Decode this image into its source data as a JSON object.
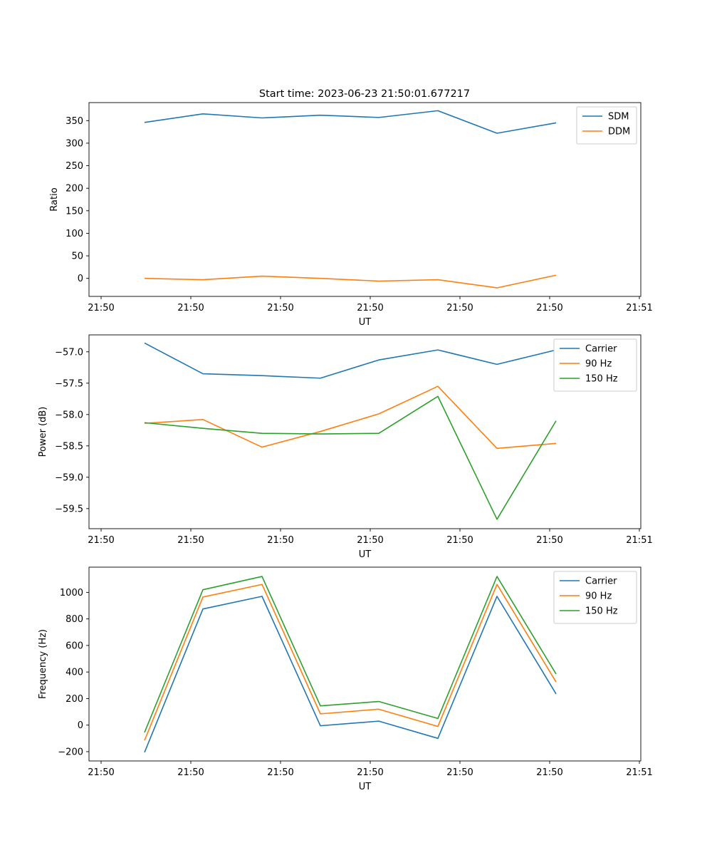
{
  "figure": {
    "title": "Start time: 2023-06-23 21:50:01.677217"
  },
  "chart_data": [
    {
      "type": "line",
      "xlabel": "UT",
      "ylabel": "Ratio",
      "x_tick_labels": [
        "21:50",
        "21:50",
        "21:50",
        "21:50",
        "21:50",
        "21:50",
        "21:51"
      ],
      "y_ticks": [
        0,
        50,
        100,
        150,
        200,
        250,
        300,
        350
      ],
      "ylim": [
        -40,
        390
      ],
      "legend": "top-right",
      "grid": false,
      "series": [
        {
          "name": "SDM",
          "color": "#1f77b4",
          "values": [
            346,
            365,
            356,
            362,
            357,
            372,
            322,
            345
          ]
        },
        {
          "name": "DDM",
          "color": "#ff7f0e",
          "values": [
            0,
            -3,
            5,
            0,
            -6,
            -3,
            -21,
            7
          ]
        }
      ]
    },
    {
      "type": "line",
      "xlabel": "UT",
      "ylabel": "Power (dB)",
      "x_tick_labels": [
        "21:50",
        "21:50",
        "21:50",
        "21:50",
        "21:50",
        "21:50",
        "21:51"
      ],
      "y_ticks": [
        -57.0,
        -57.5,
        -58.0,
        -58.5,
        -59.0,
        -59.5
      ],
      "y_tick_labels": [
        "−57.0",
        "−57.5",
        "−58.0",
        "−58.5",
        "−59.0",
        "−59.5"
      ],
      "ylim": [
        -59.82,
        -56.73
      ],
      "legend": "top-right",
      "grid": false,
      "series": [
        {
          "name": "Carrier",
          "color": "#1f77b4",
          "values": [
            -56.86,
            -57.35,
            -57.38,
            -57.42,
            -57.13,
            -56.97,
            -57.2,
            -56.97
          ]
        },
        {
          "name": "90 Hz",
          "color": "#ff7f0e",
          "values": [
            -58.14,
            -58.08,
            -58.52,
            -58.27,
            -57.99,
            -57.55,
            -58.54,
            -58.46
          ]
        },
        {
          "name": "150 Hz",
          "color": "#2ca02c",
          "values": [
            -58.13,
            -58.22,
            -58.3,
            -58.31,
            -58.3,
            -57.71,
            -59.67,
            -58.1
          ]
        }
      ]
    },
    {
      "type": "line",
      "xlabel": "UT",
      "ylabel": "Frequency (Hz)",
      "x_tick_labels": [
        "21:50",
        "21:50",
        "21:50",
        "21:50",
        "21:50",
        "21:50",
        "21:51"
      ],
      "y_ticks": [
        -200,
        0,
        200,
        400,
        600,
        800,
        1000
      ],
      "y_tick_labels": [
        "−200",
        "0",
        "200",
        "400",
        "600",
        "800",
        "1000"
      ],
      "ylim": [
        -270,
        1190
      ],
      "legend": "top-right",
      "grid": false,
      "series": [
        {
          "name": "Carrier",
          "color": "#1f77b4",
          "values": [
            -205,
            875,
            970,
            -5,
            30,
            -100,
            970,
            235
          ]
        },
        {
          "name": "90 Hz",
          "color": "#ff7f0e",
          "values": [
            -115,
            965,
            1060,
            85,
            120,
            -10,
            1060,
            325
          ]
        },
        {
          "name": "150 Hz",
          "color": "#2ca02c",
          "values": [
            -55,
            1020,
            1120,
            145,
            178,
            50,
            1120,
            385
          ]
        }
      ]
    }
  ]
}
